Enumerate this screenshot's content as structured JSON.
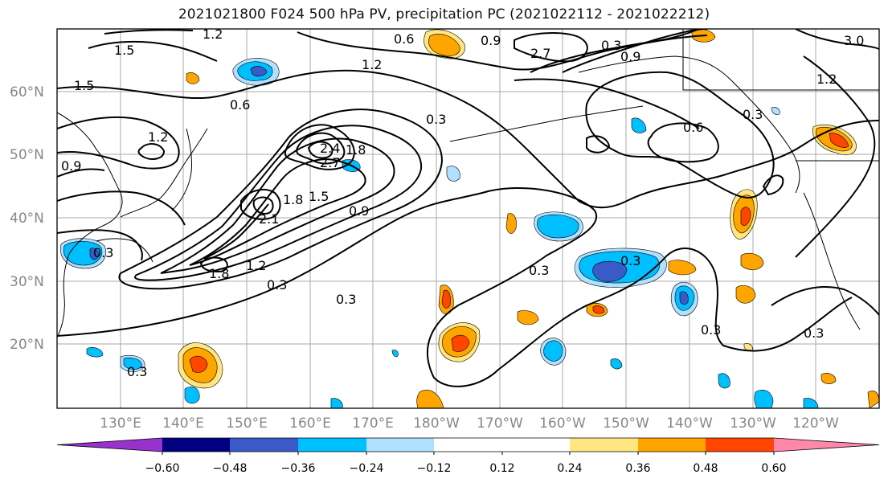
{
  "title": "2021021800 F024 500 hPa PV, precipitation PC (2021022112 - 2021022212)",
  "lat_labels": [
    "60°N",
    "50°N",
    "40°N",
    "30°N",
    "20°N"
  ],
  "lon_labels": [
    "130°E",
    "140°E",
    "150°E",
    "160°E",
    "170°E",
    "180°W",
    "170°W",
    "160°W",
    "150°W",
    "140°W",
    "130°W",
    "120°W"
  ],
  "contour_labels": [
    "1.2",
    "0.6",
    "0.9",
    "1.5",
    "1.5",
    "1.2",
    "0.9",
    "0.6",
    "0.3",
    "1.2",
    "2.4",
    "2.7",
    "1.8",
    "1.5",
    "0.9",
    "2.1",
    "1.8",
    "1.8",
    "1.2",
    "0.3",
    "0.3",
    "0.3",
    "0.3",
    "0.3",
    "0.3",
    "0.3",
    "0.3",
    "1.2",
    "0.6",
    "0.3",
    "3.0",
    "0.3",
    "2.7",
    "0.9"
  ],
  "colorbar": {
    "colors": [
      "#9932CC",
      "#000080",
      "#3A5BC7",
      "#00BFFF",
      "#B0E0FF",
      "#FFFFFF",
      "#FFFFFF",
      "#FFE680",
      "#FFA500",
      "#FF4500",
      "#B22222",
      "#FF88AA"
    ],
    "ticks": [
      "−0.60",
      "−0.48",
      "−0.36",
      "−0.24",
      "−0.12",
      "0.12",
      "0.24",
      "0.36",
      "0.48",
      "0.60"
    ]
  },
  "colors": {
    "positive_low": "#FFE680",
    "positive_mid": "#FFA500",
    "positive_high": "#FF4500",
    "negative_low": "#B0E0FF",
    "negative_mid": "#00BFFF",
    "negative_high": "#3A5BC7",
    "grid": "#aaaaaa",
    "contour": "#000000"
  }
}
